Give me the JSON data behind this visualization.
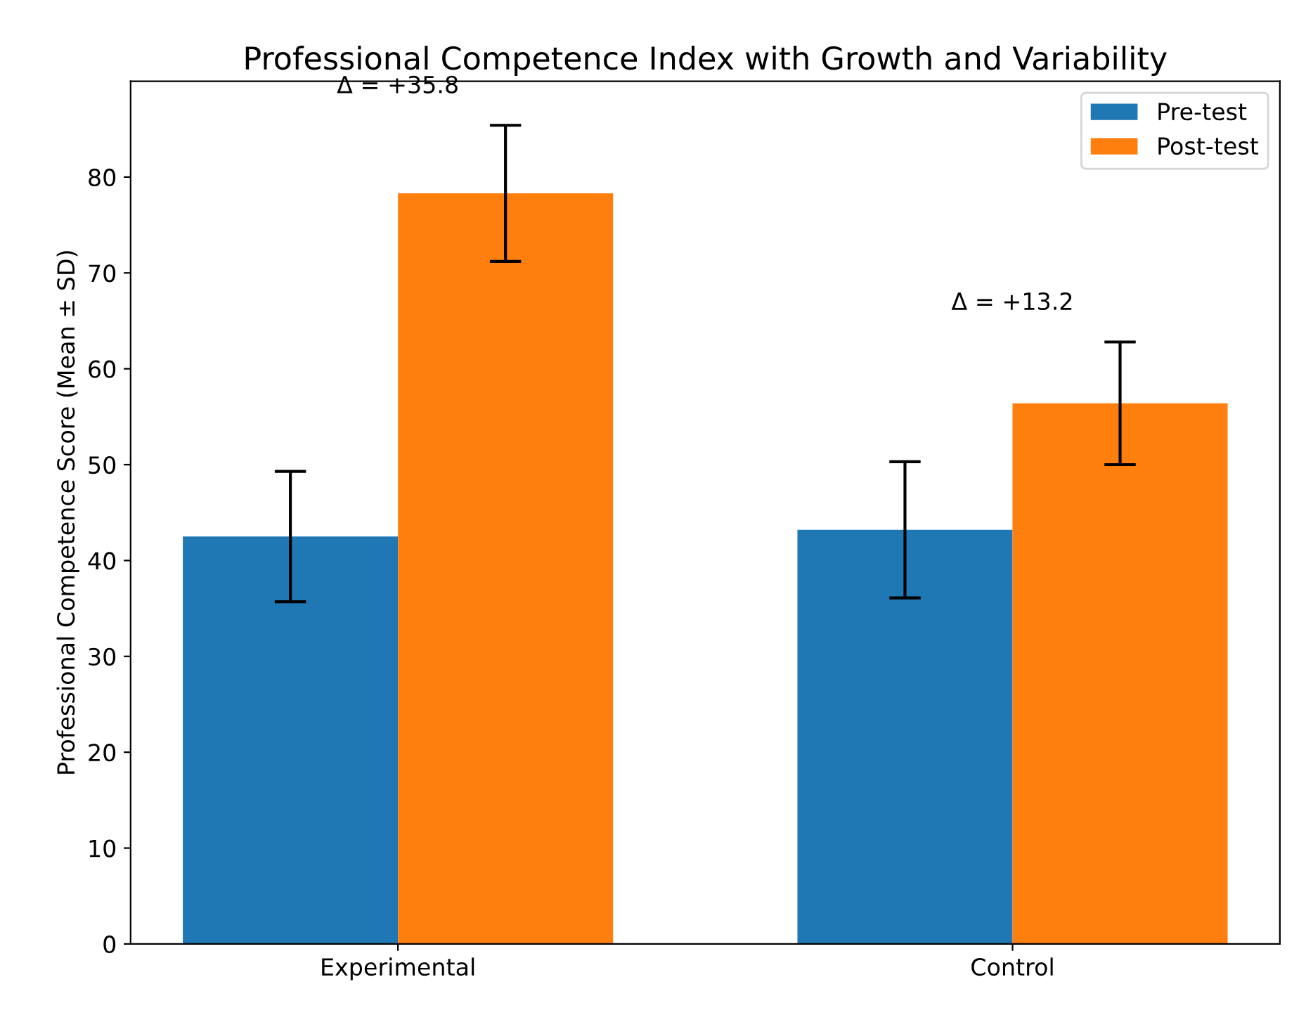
{
  "chart_data": {
    "type": "bar",
    "title": "Professional Competence Index with Growth and Variability",
    "ylabel": "Professional Competence Score (Mean ± SD)",
    "categories": [
      "Experimental",
      "Control"
    ],
    "series": [
      {
        "name": "Pre-test",
        "color": "#1f77b4",
        "values": [
          42.5,
          43.2
        ],
        "errors": [
          6.8,
          7.1
        ]
      },
      {
        "name": "Post-test",
        "color": "#ff7f0e",
        "values": [
          78.3,
          56.4
        ],
        "errors": [
          7.1,
          6.4
        ]
      }
    ],
    "annotations": [
      "Δ = +35.8",
      "Δ = +13.2"
    ],
    "ylim": [
      0,
      90
    ],
    "yticks": [
      0,
      10,
      20,
      30,
      40,
      50,
      60,
      70,
      80
    ],
    "grid": false,
    "legend": "top right"
  }
}
